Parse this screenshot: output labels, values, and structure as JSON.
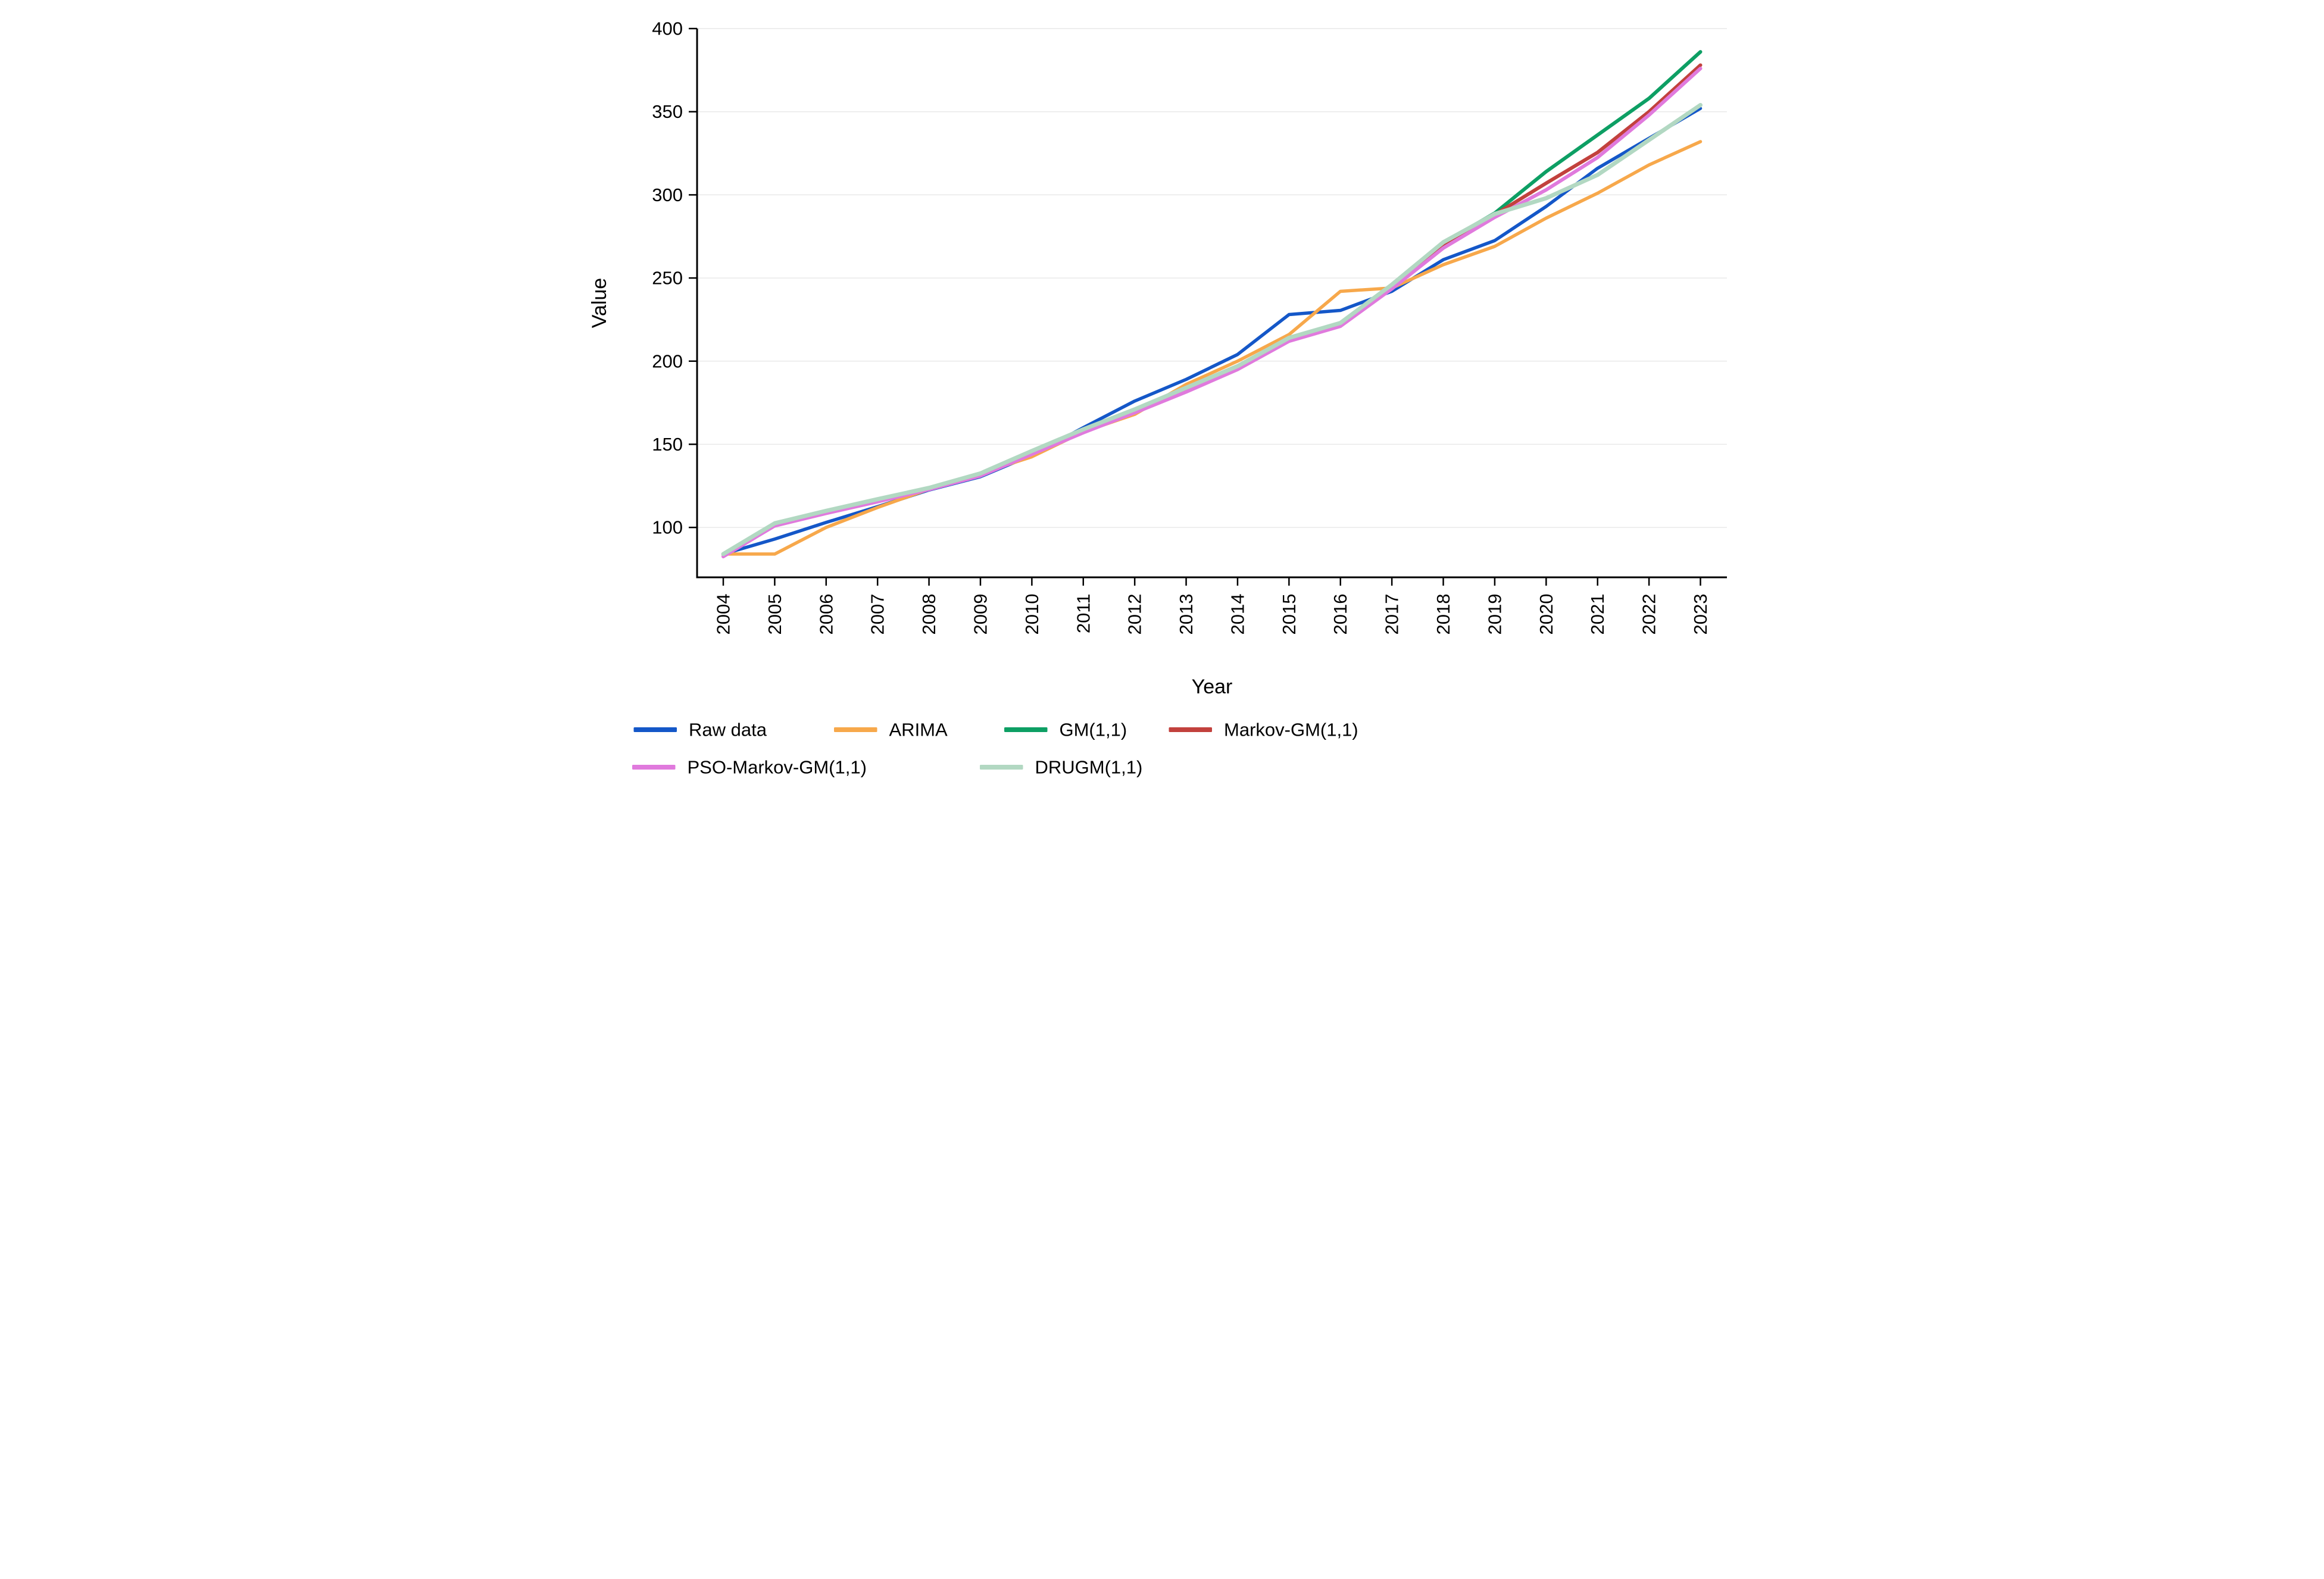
{
  "chart_data": {
    "type": "line",
    "xlabel": "Year",
    "ylabel": "Value",
    "x": [
      2004,
      2005,
      2006,
      2007,
      2008,
      2009,
      2010,
      2011,
      2012,
      2013,
      2014,
      2015,
      2016,
      2017,
      2018,
      2019,
      2020,
      2021,
      2022,
      2023
    ],
    "y_ticks": [
      100,
      150,
      200,
      250,
      300,
      350,
      400
    ],
    "ylim": [
      70,
      400
    ],
    "grid": "horizontal-only",
    "legend_position": "bottom-left-two-rows",
    "series": [
      {
        "name": "Raw data",
        "color": "#1457c8",
        "values": [
          84,
          93,
          103,
          112.5,
          122.5,
          130.5,
          143.5,
          160,
          176,
          189,
          204,
          228,
          230.5,
          242,
          261,
          272.5,
          293,
          316,
          334,
          352
        ]
      },
      {
        "name": "ARIMA",
        "color": "#f7a84b",
        "values": [
          84,
          84,
          100,
          112,
          123,
          132.5,
          142.5,
          157.5,
          168,
          186,
          200,
          216,
          242,
          244,
          258,
          269,
          286,
          301,
          318,
          332
        ]
      },
      {
        "name": "GM(1,1)",
        "color": "#0d9f64",
        "values": [
          84,
          102,
          109.5,
          116.5,
          123.5,
          132,
          145.5,
          158,
          170.5,
          183,
          196.5,
          213.5,
          222.5,
          245.5,
          271,
          289,
          314,
          336,
          358,
          386
        ]
      },
      {
        "name": "Markov-GM(1,1)",
        "color": "#c2413d",
        "values": [
          83.5,
          101.5,
          109,
          116,
          123,
          131.5,
          145,
          157.5,
          170,
          182.5,
          196,
          213,
          222,
          244.5,
          269,
          288,
          307,
          325.5,
          350,
          378
        ]
      },
      {
        "name": "PSO-Markov-GM(1,1)",
        "color": "#e07add",
        "values": [
          82.5,
          101,
          108.5,
          115.5,
          122.8,
          131,
          144,
          157,
          169,
          181.5,
          195,
          212,
          221,
          243.5,
          268,
          286.5,
          303,
          322.5,
          348,
          376
        ]
      },
      {
        "name": "DRUGM(1,1)",
        "color": "#b2d8c2",
        "values": [
          84,
          102.5,
          110,
          117,
          123.8,
          132.5,
          146,
          159,
          171,
          184,
          197,
          214,
          223,
          246,
          271.5,
          288.5,
          298,
          312,
          333,
          354
        ]
      }
    ]
  }
}
